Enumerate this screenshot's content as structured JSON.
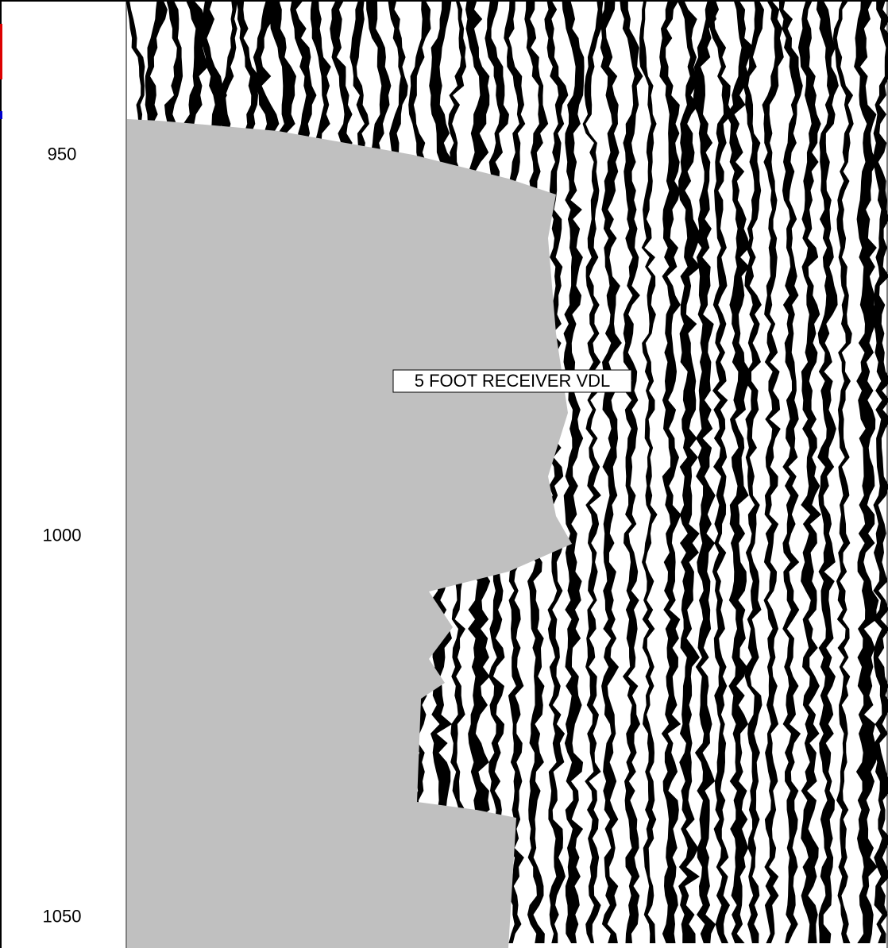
{
  "chart_data": {
    "type": "vdl",
    "annotation": "5 FOOT RECEIVER VDL",
    "ylim": [
      929.6,
      1054
    ],
    "yticks": [
      950,
      1000,
      1050
    ],
    "inverted": true
  }
}
